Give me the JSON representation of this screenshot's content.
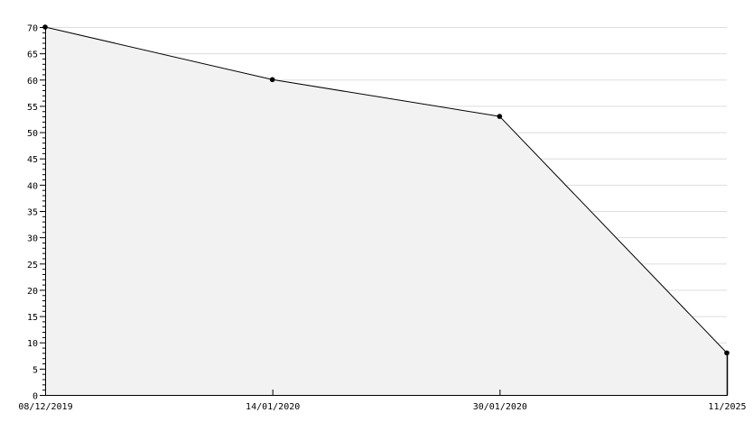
{
  "chart_data": {
    "type": "area",
    "categories": [
      "08/12/2019",
      "14/01/2020",
      "30/01/2020",
      "11/2025"
    ],
    "values": [
      70,
      60,
      53,
      8
    ],
    "title": "",
    "xlabel": "",
    "ylabel": "",
    "ylim": [
      0,
      70
    ],
    "ytick_step": 5,
    "grid": true,
    "legend": "none",
    "colors": {
      "line": "#000000",
      "fill": "#f2f2f2",
      "grid": "#dddddd",
      "marker": "#000000"
    }
  }
}
